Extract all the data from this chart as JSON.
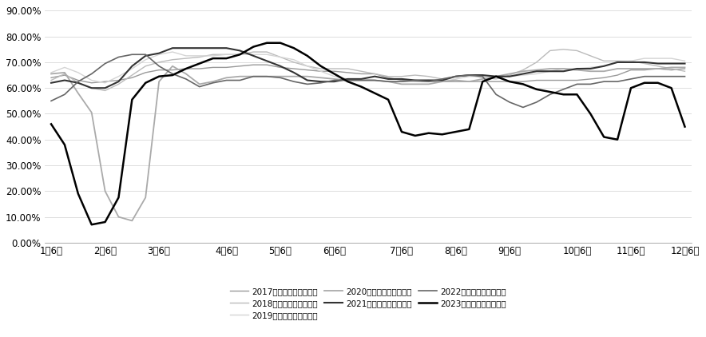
{
  "x_labels": [
    "1月6日",
    "2月6日",
    "3月6日",
    "4月6日",
    "5月6日",
    "6月6日",
    "7月6日",
    "8月6日",
    "9月6日",
    "10月6日",
    "11月6日",
    "12月6日"
  ],
  "x_ticks": [
    0,
    4,
    8,
    13,
    17,
    21,
    26,
    30,
    34,
    39,
    43,
    47
  ],
  "series": [
    {
      "name": "2017年国内全钒胎开工率",
      "color": "#999999",
      "linewidth": 1.0,
      "values_y": [
        0.64,
        0.65,
        0.63,
        0.62,
        0.625,
        0.63,
        0.64,
        0.66,
        0.67,
        0.67,
        0.675,
        0.675,
        0.68,
        0.68,
        0.685,
        0.69,
        0.69,
        0.68,
        0.675,
        0.67,
        0.665,
        0.665,
        0.66,
        0.655,
        0.655,
        0.64,
        0.63,
        0.625,
        0.625,
        0.625,
        0.625,
        0.625,
        0.625,
        0.625,
        0.625,
        0.625,
        0.63,
        0.63,
        0.63,
        0.63,
        0.635,
        0.64,
        0.65,
        0.67,
        0.67,
        0.675,
        0.67,
        0.675
      ]
    },
    {
      "name": "2018年国内全钒胎开工率",
      "color": "#bbbbbb",
      "linewidth": 1.0,
      "values_y": [
        0.63,
        0.655,
        0.62,
        0.6,
        0.59,
        0.615,
        0.65,
        0.685,
        0.7,
        0.71,
        0.715,
        0.72,
        0.73,
        0.73,
        0.73,
        0.74,
        0.74,
        0.72,
        0.7,
        0.685,
        0.675,
        0.675,
        0.675,
        0.665,
        0.655,
        0.645,
        0.645,
        0.65,
        0.645,
        0.635,
        0.645,
        0.65,
        0.64,
        0.635,
        0.65,
        0.67,
        0.7,
        0.745,
        0.75,
        0.745,
        0.725,
        0.705,
        0.705,
        0.705,
        0.695,
        0.685,
        0.675,
        0.665
      ]
    },
    {
      "name": "2019年国内全钒胎开工率",
      "color": "#d4d4d4",
      "linewidth": 1.0,
      "values_y": [
        0.66,
        0.68,
        0.66,
        0.63,
        0.62,
        0.645,
        0.675,
        0.71,
        0.73,
        0.74,
        0.725,
        0.725,
        0.725,
        0.73,
        0.73,
        0.73,
        0.73,
        0.72,
        0.71,
        0.685,
        0.665,
        0.645,
        0.635,
        0.635,
        0.63,
        0.625,
        0.625,
        0.625,
        0.63,
        0.625,
        0.635,
        0.645,
        0.645,
        0.645,
        0.645,
        0.65,
        0.655,
        0.665,
        0.675,
        0.675,
        0.68,
        0.685,
        0.7,
        0.705,
        0.715,
        0.715,
        0.715,
        0.705
      ]
    },
    {
      "name": "2020年国内全钒胎开工率",
      "color": "#aaaaaa",
      "linewidth": 1.3,
      "values_y": [
        0.655,
        0.66,
        0.58,
        0.505,
        0.2,
        0.1,
        0.085,
        0.175,
        0.625,
        0.685,
        0.655,
        0.615,
        0.625,
        0.64,
        0.645,
        0.645,
        0.645,
        0.645,
        0.645,
        0.645,
        0.64,
        0.635,
        0.63,
        0.63,
        0.63,
        0.625,
        0.615,
        0.615,
        0.615,
        0.625,
        0.63,
        0.625,
        0.635,
        0.645,
        0.655,
        0.665,
        0.67,
        0.675,
        0.675,
        0.67,
        0.665,
        0.665,
        0.675,
        0.675,
        0.675,
        0.675,
        0.68,
        0.68
      ]
    },
    {
      "name": "2021年国内全钒胎开工率",
      "color": "#333333",
      "linewidth": 1.5,
      "values_y": [
        0.62,
        0.63,
        0.62,
        0.6,
        0.6,
        0.625,
        0.685,
        0.725,
        0.735,
        0.755,
        0.755,
        0.755,
        0.755,
        0.755,
        0.745,
        0.725,
        0.705,
        0.685,
        0.66,
        0.63,
        0.625,
        0.625,
        0.635,
        0.635,
        0.645,
        0.635,
        0.635,
        0.63,
        0.63,
        0.63,
        0.645,
        0.65,
        0.65,
        0.645,
        0.645,
        0.655,
        0.665,
        0.665,
        0.665,
        0.675,
        0.675,
        0.685,
        0.7,
        0.7,
        0.7,
        0.695,
        0.695,
        0.695
      ]
    },
    {
      "name": "2022年国内全钒胎开工率",
      "color": "#666666",
      "linewidth": 1.2,
      "values_y": [
        0.55,
        0.575,
        0.625,
        0.655,
        0.695,
        0.72,
        0.73,
        0.73,
        0.685,
        0.655,
        0.635,
        0.605,
        0.62,
        0.63,
        0.63,
        0.645,
        0.645,
        0.64,
        0.625,
        0.615,
        0.62,
        0.63,
        0.63,
        0.63,
        0.63,
        0.625,
        0.625,
        0.63,
        0.625,
        0.635,
        0.645,
        0.65,
        0.645,
        0.575,
        0.545,
        0.525,
        0.545,
        0.575,
        0.595,
        0.615,
        0.615,
        0.625,
        0.625,
        0.635,
        0.645,
        0.645,
        0.645,
        0.645
      ]
    },
    {
      "name": "2023年国内全钒胎开工率",
      "color": "#000000",
      "linewidth": 1.8,
      "values_y": [
        0.46,
        0.38,
        0.19,
        0.07,
        0.08,
        0.175,
        0.555,
        0.62,
        0.645,
        0.65,
        0.675,
        0.695,
        0.715,
        0.715,
        0.73,
        0.76,
        0.775,
        0.775,
        0.755,
        0.725,
        0.685,
        0.655,
        0.625,
        0.605,
        0.58,
        0.555,
        0.43,
        0.415,
        0.425,
        0.42,
        0.43,
        0.44,
        0.625,
        0.645,
        0.625,
        0.615,
        0.595,
        0.585,
        0.575,
        0.575,
        0.5,
        0.41,
        0.4,
        0.6,
        0.62,
        0.62,
        0.6,
        0.45
      ]
    }
  ],
  "ylim": [
    0.0,
    0.92
  ],
  "yticks": [
    0.0,
    0.1,
    0.2,
    0.3,
    0.4,
    0.5,
    0.6,
    0.7,
    0.8,
    0.9
  ],
  "background_color": "#ffffff",
  "grid_color": "#d8d8d8",
  "font_size": 8.5,
  "legend_order": [
    0,
    1,
    2,
    3,
    4,
    5,
    6
  ],
  "legend_ncol": 3
}
